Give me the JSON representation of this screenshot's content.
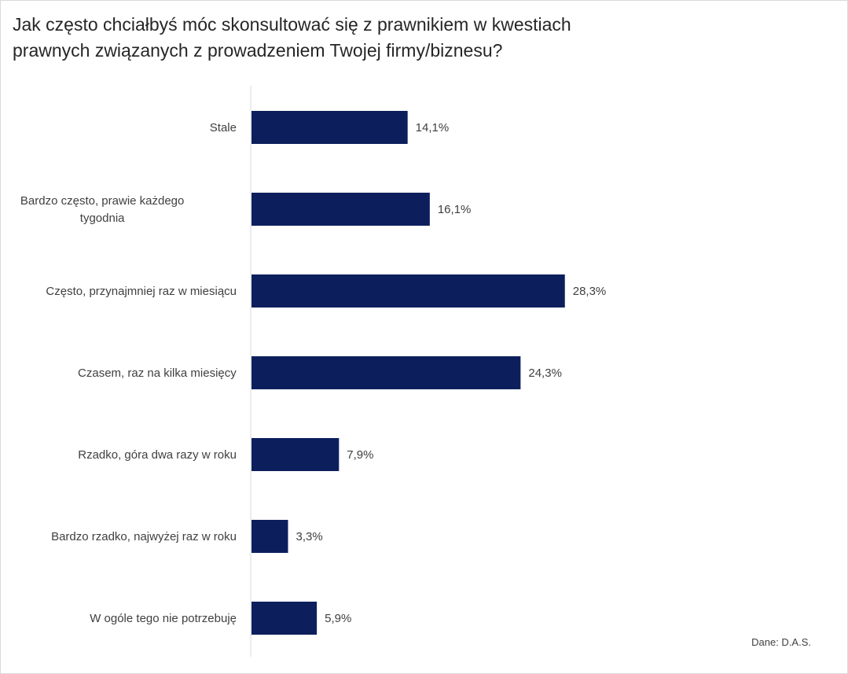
{
  "chart_data": {
    "type": "bar",
    "orientation": "horizontal",
    "title": "Jak często chciałbyś móc skonsultować się z prawnikiem w kwestiach\nprawnych związanych z prowadzeniem Twojej firmy/biznesu?",
    "categories": [
      "Stale",
      "Bardzo często, prawie każdego\ntygodnia",
      "Często, przynajmniej raz w miesiącu",
      "Czasem, raz na kilka miesięcy",
      "Rzadko, góra dwa razy w roku",
      "Bardzo rzadko, najwyżej raz w roku",
      "W ogóle tego nie potrzebuję"
    ],
    "values": [
      14.1,
      16.1,
      28.3,
      24.3,
      7.9,
      3.3,
      5.9
    ],
    "value_labels": [
      "14,1%",
      "16,1%",
      "28,3%",
      "24,3%",
      "7,9%",
      "3,3%",
      "5,9%"
    ],
    "unit": "%",
    "xlim": [
      0,
      30
    ],
    "grid": false,
    "legend": "none",
    "bar_color": "#0c1f5c",
    "axis_color": "#d9d9d9",
    "text_color": "#404040",
    "source": "Dane: D.A.S."
  }
}
